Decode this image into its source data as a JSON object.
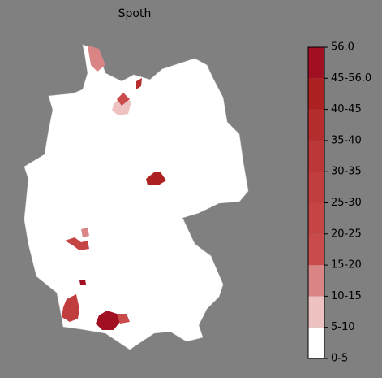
{
  "title": "Spoth",
  "colorbar": {
    "labels": [
      "0-5",
      "5-10",
      "10-15",
      "15-20",
      "20-25",
      "25-30",
      "30-35",
      "35-40",
      "40-45",
      "45-56.0",
      "56.0"
    ],
    "colors": [
      "#ffffff",
      "#efc2c2",
      "#da8585",
      "#c94b4b",
      "#c54444",
      "#c13e3e",
      "#bc3737",
      "#b52d2d",
      "#ad2121",
      "#a00f22"
    ]
  }
}
